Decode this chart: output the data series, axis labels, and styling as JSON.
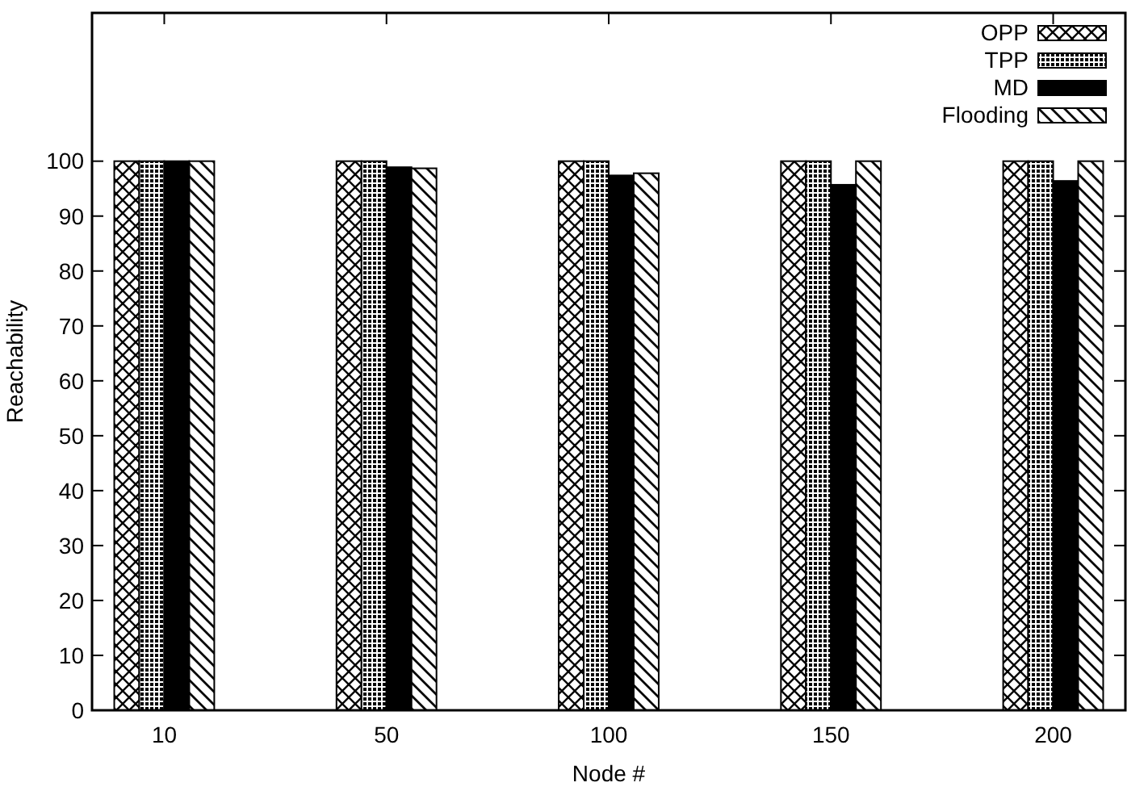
{
  "chart_data": {
    "type": "bar",
    "xlabel": "Node #",
    "ylabel": "Reachability",
    "categories": [
      "10",
      "50",
      "100",
      "150",
      "200"
    ],
    "series": [
      {
        "name": "OPP",
        "color": "#000000",
        "values": [
          100,
          100,
          100,
          100,
          100
        ]
      },
      {
        "name": "TPP",
        "color": "#000000",
        "values": [
          100,
          100,
          100,
          100,
          100
        ]
      },
      {
        "name": "MD",
        "color": "#000000",
        "values": [
          100,
          98.9,
          97.4,
          95.7,
          96.4
        ]
      },
      {
        "name": "Flooding",
        "color": "#000000",
        "values": [
          100,
          98.7,
          97.8,
          100,
          100
        ]
      }
    ],
    "ylim": [
      0,
      127
    ],
    "yticks": [
      0,
      10,
      20,
      30,
      40,
      50,
      60,
      70,
      80,
      90,
      100
    ],
    "grid": false,
    "legend": "top right"
  }
}
